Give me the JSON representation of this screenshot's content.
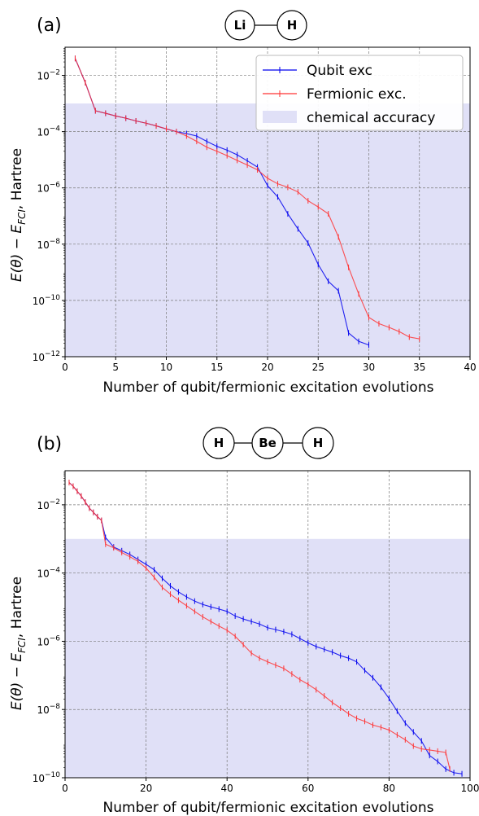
{
  "chart_data": [
    {
      "type": "line",
      "panel_label": "(a)",
      "molecule": [
        "Li",
        "H"
      ],
      "xlabel": "Number of qubit/fermionic excitation evolutions",
      "ylabel": "E(θ) − E_FCI, Hartree",
      "ylabel_parts": {
        "main": "E(θ) − E",
        "sub": "FCI",
        "tail": ", Hartree"
      },
      "xlim": [
        0,
        40
      ],
      "ylim": [
        1e-12,
        0.1
      ],
      "yscale": "log",
      "grid": true,
      "legend_position": "top-right",
      "xticks": [
        0,
        5,
        10,
        15,
        20,
        25,
        30,
        35,
        40
      ],
      "xtick_labels": [
        "0",
        "5",
        "10",
        "15",
        "20",
        "25",
        "30",
        "35",
        "40"
      ],
      "yticks": [
        1e-12,
        1e-10,
        1e-08,
        1e-06,
        0.0001,
        0.01
      ],
      "ytick_labels": [
        {
          "base": "10",
          "exp": "−12"
        },
        {
          "base": "10",
          "exp": "−10"
        },
        {
          "base": "10",
          "exp": "−8"
        },
        {
          "base": "10",
          "exp": "−6"
        },
        {
          "base": "10",
          "exp": "−4"
        },
        {
          "base": "10",
          "exp": "−2"
        }
      ],
      "chemical_accuracy": 0.001,
      "legend": [
        "Qubit exc",
        "Fermionic exc.",
        "chemical accuracy"
      ],
      "colors": {
        "qubit": "#0000ee",
        "fermionic": "#ff3333",
        "band": "#e0e0f7",
        "overlap": "#800080"
      },
      "series": [
        {
          "name": "Qubit exc",
          "key": "qubit",
          "x": [
            1,
            2,
            3,
            4,
            5,
            6,
            7,
            8,
            9,
            10,
            11,
            12,
            13,
            14,
            15,
            16,
            17,
            18,
            19,
            20,
            21,
            22,
            23,
            24,
            25,
            26,
            27,
            28,
            29,
            30
          ],
          "y": [
            0.04,
            0.0055,
            0.00055,
            0.00045,
            0.00036,
            0.0003,
            0.00024,
            0.0002,
            0.00016,
            0.000125,
            0.0001,
            8.5e-05,
            7e-05,
            4.5e-05,
            3e-05,
            2.2e-05,
            1.5e-05,
            9.2e-06,
            5.5e-06,
            1.2e-06,
            4.8e-07,
            1.2e-07,
            3.5e-08,
            1.1e-08,
            1.9e-09,
            4.8e-10,
            2.2e-10,
            7e-12,
            3.5e-12,
            2.6e-12
          ]
        },
        {
          "name": "Fermionic exc.",
          "key": "fermionic",
          "x": [
            1,
            2,
            3,
            4,
            5,
            6,
            7,
            8,
            9,
            10,
            11,
            12,
            13,
            14,
            15,
            16,
            17,
            18,
            19,
            20,
            21,
            22,
            23,
            24,
            25,
            26,
            27,
            28,
            29,
            30,
            31,
            32,
            33,
            34,
            35
          ],
          "y": [
            0.04,
            0.0055,
            0.00055,
            0.00045,
            0.00036,
            0.0003,
            0.00024,
            0.0002,
            0.00016,
            0.000125,
            0.0001,
            7e-05,
            4.5e-05,
            2.8e-05,
            2e-05,
            1.4e-05,
            9.5e-06,
            6.5e-06,
            4.4e-06,
            2.2e-06,
            1.4e-06,
            1.05e-06,
            7.2e-07,
            3.5e-07,
            2.1e-07,
            1.2e-07,
            1.8e-08,
            1.5e-09,
            1.7e-10,
            2.5e-11,
            1.5e-11,
            1.1e-11,
            7.8e-12,
            5e-12,
            4.3e-12
          ]
        }
      ]
    },
    {
      "type": "line",
      "panel_label": "(b)",
      "molecule": [
        "H",
        "Be",
        "H"
      ],
      "xlabel": "Number of qubit/fermionic excitation evolutions",
      "ylabel": "E(θ) − E_FCI, Hartree",
      "ylabel_parts": {
        "main": "E(θ) − E",
        "sub": "FCI",
        "tail": ", Hartree"
      },
      "xlim": [
        0,
        100
      ],
      "ylim": [
        1e-10,
        0.1
      ],
      "yscale": "log",
      "grid": true,
      "xticks": [
        0,
        20,
        40,
        60,
        80,
        100
      ],
      "xtick_labels": [
        "0",
        "20",
        "40",
        "60",
        "80",
        "100"
      ],
      "yticks": [
        1e-10,
        1e-08,
        1e-06,
        0.0001,
        0.01
      ],
      "ytick_labels": [
        {
          "base": "10",
          "exp": "−10"
        },
        {
          "base": "10",
          "exp": "−8"
        },
        {
          "base": "10",
          "exp": "−6"
        },
        {
          "base": "10",
          "exp": "−4"
        },
        {
          "base": "10",
          "exp": "−2"
        }
      ],
      "chemical_accuracy": 0.001,
      "colors": {
        "qubit": "#0000ee",
        "fermionic": "#ff3333",
        "band": "#e0e0f7",
        "overlap": "#800080"
      },
      "series": [
        {
          "name": "Qubit exc",
          "key": "qubit",
          "x": [
            1,
            2,
            3,
            4,
            5,
            6,
            7,
            8,
            9,
            10,
            12,
            14,
            16,
            18,
            20,
            22,
            24,
            26,
            28,
            30,
            32,
            34,
            36,
            38,
            40,
            42,
            44,
            46,
            48,
            50,
            52,
            54,
            56,
            58,
            60,
            62,
            64,
            66,
            68,
            70,
            72,
            74,
            76,
            78,
            80,
            82,
            84,
            86,
            88,
            90,
            92,
            94,
            96,
            98
          ],
          "y": [
            0.045,
            0.035,
            0.025,
            0.018,
            0.012,
            0.008,
            0.006,
            0.0045,
            0.0035,
            0.0011,
            0.00058,
            0.00045,
            0.00035,
            0.00025,
            0.00018,
            0.000125,
            7e-05,
            4.2e-05,
            2.8e-05,
            2e-05,
            1.5e-05,
            1.2e-05,
            1.02e-05,
            8.8e-06,
            7.5e-06,
            5.5e-06,
            4.5e-06,
            3.8e-06,
            3.2e-06,
            2.5e-06,
            2.2e-06,
            1.9e-06,
            1.6e-06,
            1.2e-06,
            9e-07,
            7e-07,
            5.8e-07,
            4.8e-07,
            3.8e-07,
            3.2e-07,
            2.5e-07,
            1.4e-07,
            8.5e-08,
            4.5e-08,
            2.1e-08,
            9e-09,
            4e-09,
            2.2e-09,
            1.2e-09,
            4.5e-10,
            3e-10,
            1.8e-10,
            1.4e-10,
            1.3e-10
          ]
        },
        {
          "name": "Fermionic exc.",
          "key": "fermionic",
          "x": [
            1,
            2,
            3,
            4,
            5,
            6,
            7,
            8,
            9,
            10,
            12,
            14,
            16,
            18,
            20,
            22,
            24,
            26,
            28,
            30,
            32,
            34,
            36,
            38,
            40,
            42,
            44,
            46,
            48,
            50,
            52,
            54,
            56,
            58,
            60,
            62,
            64,
            66,
            68,
            70,
            72,
            74,
            76,
            78,
            80,
            82,
            84,
            86,
            88,
            90,
            92,
            94,
            95
          ],
          "y": [
            0.045,
            0.035,
            0.025,
            0.018,
            0.012,
            0.008,
            0.006,
            0.0045,
            0.0035,
            0.0007,
            0.00055,
            0.0004,
            0.0003,
            0.00022,
            0.00014,
            7.5e-05,
            3.8e-05,
            2.4e-05,
            1.6e-05,
            1.1e-05,
            7.5e-06,
            5.2e-06,
            3.8e-06,
            2.8e-06,
            2.1e-06,
            1.4e-06,
            8e-07,
            4.5e-07,
            3.2e-07,
            2.5e-07,
            2e-07,
            1.6e-07,
            1.1e-07,
            7.5e-08,
            5.5e-08,
            3.8e-08,
            2.5e-08,
            1.6e-08,
            1.1e-08,
            7.5e-09,
            5.5e-09,
            4.5e-09,
            3.5e-09,
            3e-09,
            2.5e-09,
            1.8e-09,
            1.3e-09,
            8.5e-10,
            7e-10,
            6.5e-10,
            6e-10,
            5.5e-10,
            1.8e-10
          ]
        }
      ]
    }
  ]
}
